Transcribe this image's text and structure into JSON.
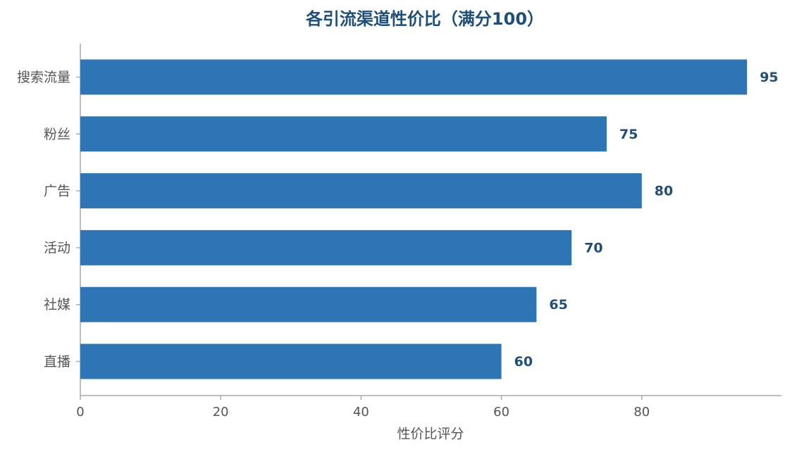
{
  "chart_data": {
    "type": "barh",
    "title": "各引流渠道性价比（满分100）",
    "x_label": "性价比评分",
    "categories": [
      "搜索流量",
      "粉丝",
      "广告",
      "活动",
      "社媒",
      "直播"
    ],
    "values": [
      95,
      75,
      80,
      70,
      65,
      60
    ],
    "color": "#2e75b6",
    "xlim": [
      0,
      100
    ],
    "xticks": [
      0,
      20,
      40,
      60,
      80
    ]
  }
}
